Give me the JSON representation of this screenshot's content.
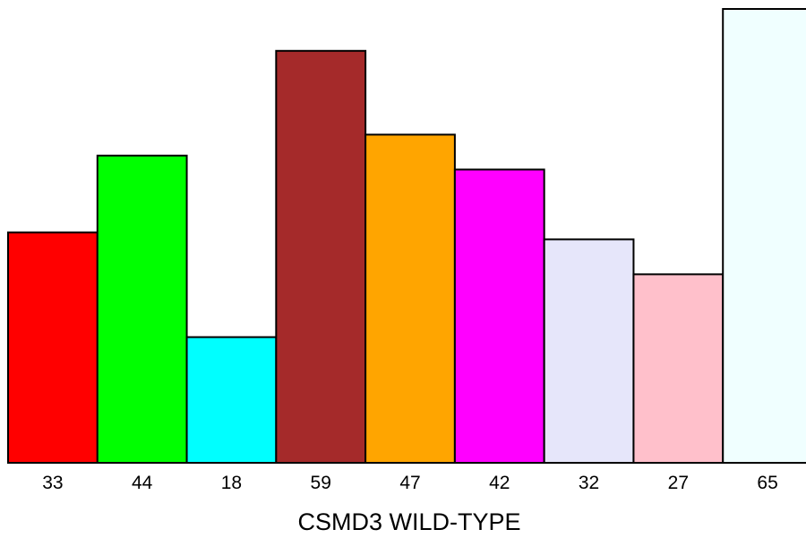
{
  "chart_data": {
    "type": "bar",
    "categories": [
      "33",
      "44",
      "18",
      "59",
      "47",
      "42",
      "32",
      "27",
      "65"
    ],
    "values": [
      33,
      44,
      18,
      59,
      47,
      42,
      32,
      27,
      65
    ],
    "colors": [
      "#ff0000",
      "#00ff00",
      "#00ffff",
      "#a52a2a",
      "#ffa500",
      "#ff00ff",
      "#e6e6fa",
      "#ffc0cb",
      "#f0ffff"
    ],
    "xlabel": "CSMD3 WILD-TYPE",
    "ylabel": "",
    "ylim": [
      0,
      65
    ],
    "grid": false,
    "legend": "none"
  }
}
